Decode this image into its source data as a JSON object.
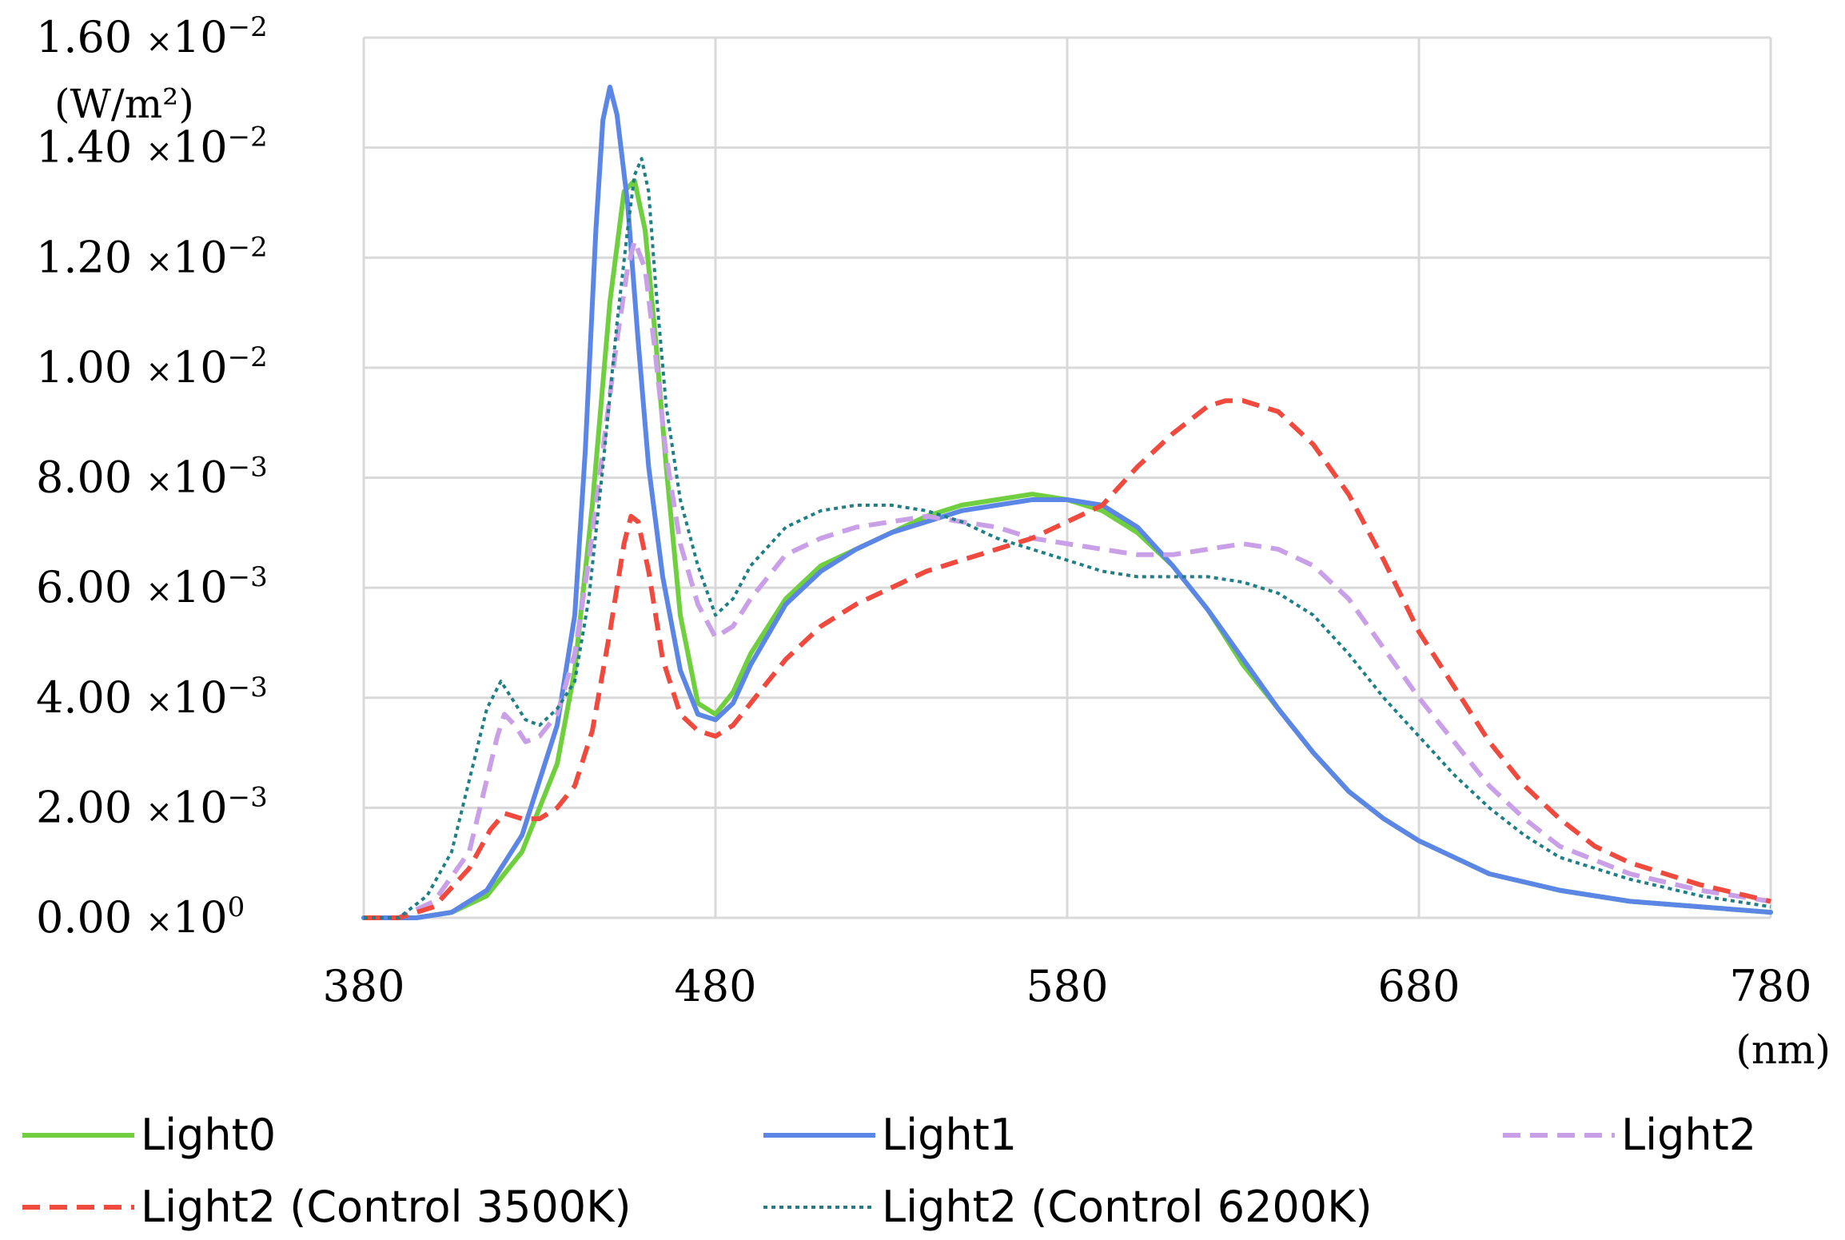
{
  "chart_data": {
    "type": "line",
    "title": "",
    "xlabel": "(nm)",
    "ylabel": "(W/m²)",
    "xlim": [
      380,
      780
    ],
    "ylim": [
      0,
      0.016
    ],
    "grid": true,
    "legend_position": "bottom",
    "x_ticks": [
      "380",
      "480",
      "580",
      "680",
      "780"
    ],
    "x_tick_values": [
      380,
      480,
      580,
      680,
      780
    ],
    "y_tick_values": [
      0,
      0.002,
      0.004,
      0.006,
      0.008,
      0.01,
      0.012,
      0.014,
      0.016
    ],
    "y_ticks": [
      {
        "mantissa": "0.00",
        "exponent": "0"
      },
      {
        "mantissa": "2.00",
        "exponent": "−3"
      },
      {
        "mantissa": "4.00",
        "exponent": "−3"
      },
      {
        "mantissa": "6.00",
        "exponent": "−3"
      },
      {
        "mantissa": "8.00",
        "exponent": "−3"
      },
      {
        "mantissa": "1.00",
        "exponent": "−2"
      },
      {
        "mantissa": "1.20",
        "exponent": "−2"
      },
      {
        "mantissa": "1.40",
        "exponent": "−2"
      },
      {
        "mantissa": "1.60",
        "exponent": "−2"
      }
    ],
    "y_tick_times": "×10",
    "series": [
      {
        "name": "Light0",
        "color": "#6fcf3f",
        "dash": "solid",
        "points": [
          [
            380,
            0
          ],
          [
            395,
            0
          ],
          [
            405,
            0.0001
          ],
          [
            415,
            0.0004
          ],
          [
            425,
            0.0012
          ],
          [
            435,
            0.0028
          ],
          [
            440,
            0.0045
          ],
          [
            445,
            0.0075
          ],
          [
            450,
            0.0112
          ],
          [
            454,
            0.0132
          ],
          [
            457,
            0.0134
          ],
          [
            460,
            0.0125
          ],
          [
            463,
            0.0105
          ],
          [
            466,
            0.0082
          ],
          [
            470,
            0.0055
          ],
          [
            475,
            0.0039
          ],
          [
            480,
            0.0037
          ],
          [
            485,
            0.0041
          ],
          [
            490,
            0.0048
          ],
          [
            500,
            0.0058
          ],
          [
            510,
            0.0064
          ],
          [
            520,
            0.0067
          ],
          [
            530,
            0.007
          ],
          [
            540,
            0.0073
          ],
          [
            550,
            0.0075
          ],
          [
            560,
            0.0076
          ],
          [
            570,
            0.0077
          ],
          [
            580,
            0.0076
          ],
          [
            590,
            0.0074
          ],
          [
            600,
            0.007
          ],
          [
            610,
            0.0064
          ],
          [
            620,
            0.0056
          ],
          [
            630,
            0.0046
          ],
          [
            640,
            0.0038
          ],
          [
            650,
            0.003
          ],
          [
            660,
            0.0023
          ],
          [
            670,
            0.0018
          ],
          [
            680,
            0.0014
          ],
          [
            690,
            0.0011
          ],
          [
            700,
            0.0008
          ],
          [
            720,
            0.0005
          ],
          [
            740,
            0.0003
          ],
          [
            760,
            0.0002
          ],
          [
            780,
            0.0001
          ]
        ]
      },
      {
        "name": "Light1",
        "color": "#5b86e5",
        "dash": "solid",
        "points": [
          [
            380,
            0
          ],
          [
            395,
            0
          ],
          [
            405,
            0.0001
          ],
          [
            415,
            0.0005
          ],
          [
            425,
            0.0015
          ],
          [
            435,
            0.0035
          ],
          [
            440,
            0.0055
          ],
          [
            443,
            0.0085
          ],
          [
            446,
            0.0125
          ],
          [
            448,
            0.0145
          ],
          [
            450,
            0.0151
          ],
          [
            452,
            0.0146
          ],
          [
            455,
            0.013
          ],
          [
            458,
            0.0105
          ],
          [
            461,
            0.0082
          ],
          [
            465,
            0.0062
          ],
          [
            470,
            0.0045
          ],
          [
            475,
            0.0037
          ],
          [
            480,
            0.0036
          ],
          [
            485,
            0.0039
          ],
          [
            490,
            0.0046
          ],
          [
            500,
            0.0057
          ],
          [
            510,
            0.0063
          ],
          [
            520,
            0.0067
          ],
          [
            530,
            0.007
          ],
          [
            540,
            0.0072
          ],
          [
            550,
            0.0074
          ],
          [
            560,
            0.0075
          ],
          [
            570,
            0.0076
          ],
          [
            580,
            0.0076
          ],
          [
            590,
            0.0075
          ],
          [
            600,
            0.0071
          ],
          [
            610,
            0.0064
          ],
          [
            620,
            0.0056
          ],
          [
            630,
            0.0047
          ],
          [
            640,
            0.0038
          ],
          [
            650,
            0.003
          ],
          [
            660,
            0.0023
          ],
          [
            670,
            0.0018
          ],
          [
            680,
            0.0014
          ],
          [
            690,
            0.0011
          ],
          [
            700,
            0.0008
          ],
          [
            720,
            0.0005
          ],
          [
            740,
            0.0003
          ],
          [
            760,
            0.0002
          ],
          [
            780,
            0.0001
          ]
        ]
      },
      {
        "name": "Light2",
        "color": "#c9a0e8",
        "dash": "dash",
        "points": [
          [
            380,
            0
          ],
          [
            390,
            0
          ],
          [
            400,
            0.0003
          ],
          [
            410,
            0.0012
          ],
          [
            418,
            0.0033
          ],
          [
            420,
            0.0037
          ],
          [
            423,
            0.0035
          ],
          [
            426,
            0.0032
          ],
          [
            430,
            0.0033
          ],
          [
            435,
            0.0037
          ],
          [
            440,
            0.0048
          ],
          [
            444,
            0.0065
          ],
          [
            448,
            0.0085
          ],
          [
            452,
            0.0105
          ],
          [
            455,
            0.0118
          ],
          [
            457,
            0.0123
          ],
          [
            460,
            0.0118
          ],
          [
            463,
            0.0102
          ],
          [
            466,
            0.0084
          ],
          [
            470,
            0.0068
          ],
          [
            475,
            0.0057
          ],
          [
            480,
            0.0051
          ],
          [
            485,
            0.0053
          ],
          [
            490,
            0.0058
          ],
          [
            500,
            0.0066
          ],
          [
            510,
            0.0069
          ],
          [
            520,
            0.0071
          ],
          [
            530,
            0.0072
          ],
          [
            540,
            0.0073
          ],
          [
            550,
            0.0072
          ],
          [
            560,
            0.0071
          ],
          [
            570,
            0.0069
          ],
          [
            580,
            0.0068
          ],
          [
            590,
            0.0067
          ],
          [
            600,
            0.0066
          ],
          [
            610,
            0.0066
          ],
          [
            620,
            0.0067
          ],
          [
            630,
            0.0068
          ],
          [
            640,
            0.0067
          ],
          [
            650,
            0.0064
          ],
          [
            660,
            0.0058
          ],
          [
            670,
            0.0049
          ],
          [
            680,
            0.004
          ],
          [
            690,
            0.0032
          ],
          [
            700,
            0.0024
          ],
          [
            710,
            0.0018
          ],
          [
            720,
            0.0013
          ],
          [
            740,
            0.0008
          ],
          [
            760,
            0.0005
          ],
          [
            780,
            0.0003
          ]
        ]
      },
      {
        "name": "Light2 (Control 3500K)",
        "color": "#f04a3f",
        "dash": "dash",
        "points": [
          [
            380,
            0
          ],
          [
            390,
            0
          ],
          [
            400,
            0.0002
          ],
          [
            410,
            0.0009
          ],
          [
            416,
            0.0016
          ],
          [
            420,
            0.0019
          ],
          [
            425,
            0.0018
          ],
          [
            430,
            0.0018
          ],
          [
            435,
            0.002
          ],
          [
            440,
            0.0024
          ],
          [
            445,
            0.0034
          ],
          [
            450,
            0.0052
          ],
          [
            454,
            0.0068
          ],
          [
            456,
            0.0073
          ],
          [
            458,
            0.0072
          ],
          [
            461,
            0.0063
          ],
          [
            465,
            0.0047
          ],
          [
            470,
            0.0037
          ],
          [
            475,
            0.0034
          ],
          [
            480,
            0.0033
          ],
          [
            485,
            0.0035
          ],
          [
            490,
            0.0039
          ],
          [
            500,
            0.0047
          ],
          [
            510,
            0.0053
          ],
          [
            520,
            0.0057
          ],
          [
            530,
            0.006
          ],
          [
            540,
            0.0063
          ],
          [
            550,
            0.0065
          ],
          [
            560,
            0.0067
          ],
          [
            570,
            0.0069
          ],
          [
            580,
            0.0072
          ],
          [
            590,
            0.0075
          ],
          [
            600,
            0.0082
          ],
          [
            610,
            0.0088
          ],
          [
            620,
            0.0093
          ],
          [
            625,
            0.0094
          ],
          [
            630,
            0.0094
          ],
          [
            640,
            0.0092
          ],
          [
            650,
            0.0086
          ],
          [
            660,
            0.0077
          ],
          [
            670,
            0.0065
          ],
          [
            680,
            0.0052
          ],
          [
            690,
            0.0042
          ],
          [
            700,
            0.0032
          ],
          [
            710,
            0.0024
          ],
          [
            720,
            0.0018
          ],
          [
            730,
            0.0013
          ],
          [
            740,
            0.001
          ],
          [
            760,
            0.0006
          ],
          [
            780,
            0.0003
          ]
        ]
      },
      {
        "name": "Light2 (Control 6200K)",
        "color": "#1f7f86",
        "dash": "dot",
        "points": [
          [
            380,
            0
          ],
          [
            390,
            0
          ],
          [
            398,
            0.0004
          ],
          [
            405,
            0.0012
          ],
          [
            410,
            0.0025
          ],
          [
            415,
            0.0038
          ],
          [
            419,
            0.0043
          ],
          [
            422,
            0.004
          ],
          [
            426,
            0.0036
          ],
          [
            430,
            0.0035
          ],
          [
            435,
            0.0038
          ],
          [
            440,
            0.0043
          ],
          [
            444,
            0.0058
          ],
          [
            448,
            0.0082
          ],
          [
            452,
            0.0108
          ],
          [
            455,
            0.0125
          ],
          [
            457,
            0.0135
          ],
          [
            459,
            0.0138
          ],
          [
            461,
            0.0132
          ],
          [
            463,
            0.0115
          ],
          [
            466,
            0.0093
          ],
          [
            470,
            0.0076
          ],
          [
            475,
            0.0064
          ],
          [
            480,
            0.0055
          ],
          [
            485,
            0.0058
          ],
          [
            490,
            0.0064
          ],
          [
            500,
            0.0071
          ],
          [
            510,
            0.0074
          ],
          [
            520,
            0.0075
          ],
          [
            530,
            0.0075
          ],
          [
            540,
            0.0074
          ],
          [
            550,
            0.0072
          ],
          [
            560,
            0.0069
          ],
          [
            570,
            0.0067
          ],
          [
            580,
            0.0065
          ],
          [
            590,
            0.0063
          ],
          [
            600,
            0.0062
          ],
          [
            610,
            0.0062
          ],
          [
            620,
            0.0062
          ],
          [
            630,
            0.0061
          ],
          [
            640,
            0.0059
          ],
          [
            650,
            0.0055
          ],
          [
            660,
            0.0048
          ],
          [
            670,
            0.004
          ],
          [
            680,
            0.0033
          ],
          [
            690,
            0.0026
          ],
          [
            700,
            0.002
          ],
          [
            710,
            0.0015
          ],
          [
            720,
            0.0011
          ],
          [
            740,
            0.0007
          ],
          [
            760,
            0.0004
          ],
          [
            780,
            0.0002
          ]
        ]
      }
    ]
  }
}
